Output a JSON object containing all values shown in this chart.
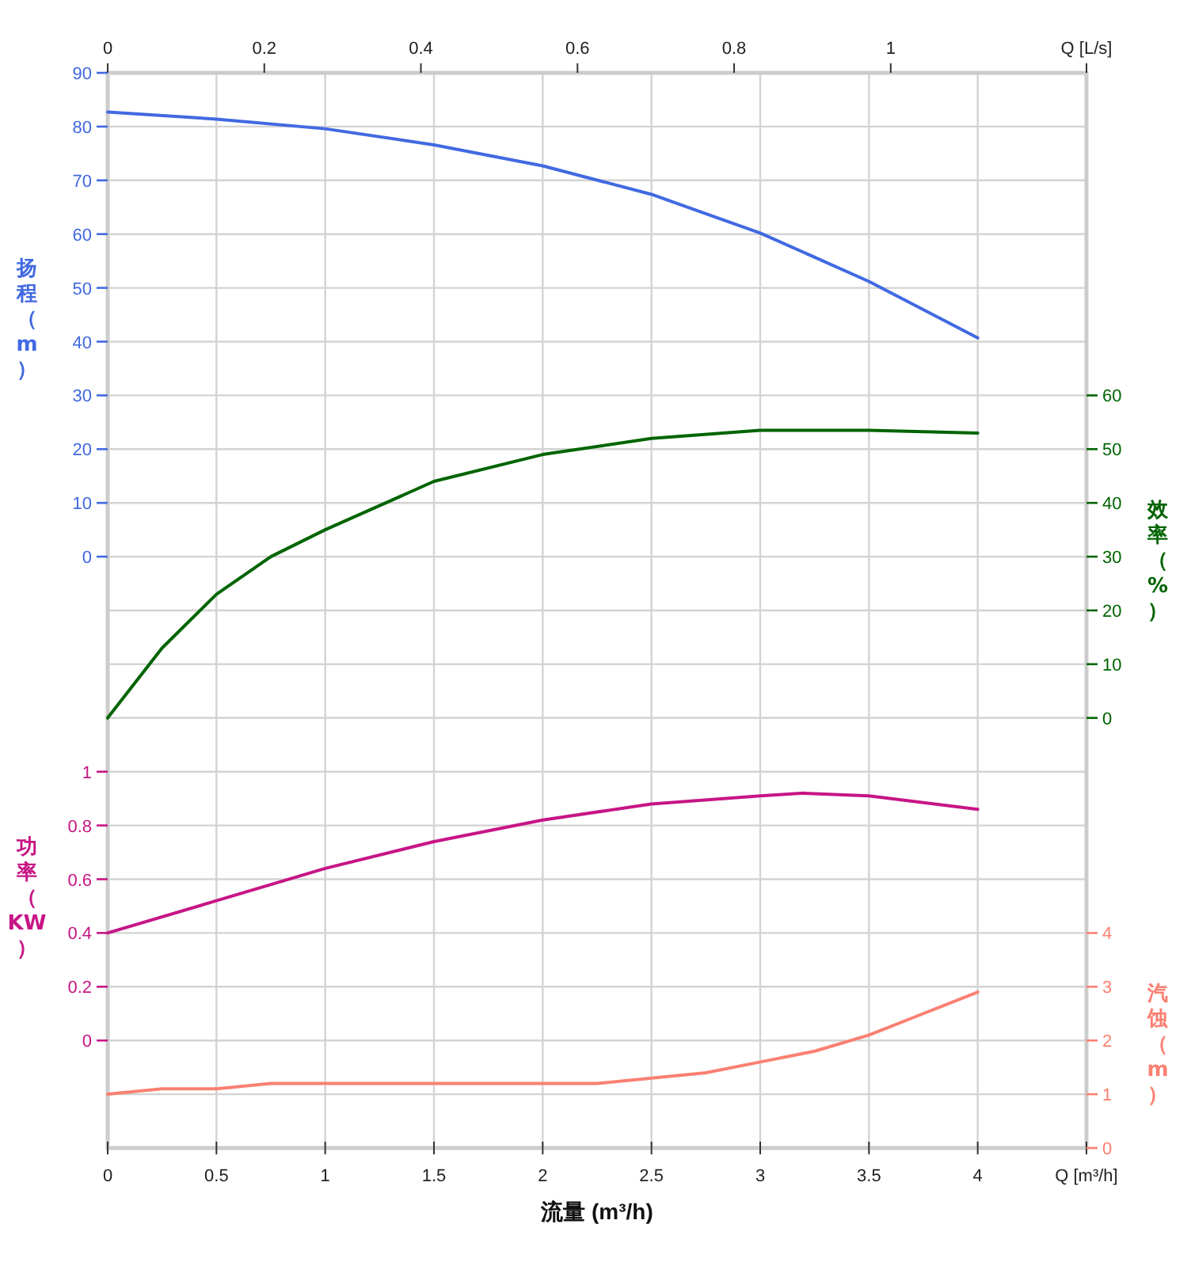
{
  "chart_data": [
    {
      "type": "line",
      "xlabel": "流量 (m³/h)",
      "x2label": "Q [L/s]",
      "ylabel": "扬程（m）",
      "y2label": "效率（%）",
      "xlim": [
        0,
        4.5
      ],
      "xticks": [
        0,
        0.5,
        1,
        1.5,
        2,
        2.5,
        3,
        3.5,
        4,
        {
          "value": 4.5,
          "label": "Q [m³/h]"
        }
      ],
      "x2lim": [
        0,
        1.25
      ],
      "x2ticks": [
        0,
        0.2,
        0.4,
        0.6,
        0.8,
        1,
        {
          "value": 1.25,
          "label": null
        }
      ],
      "ylim": [
        -110,
        90
      ],
      "yticks": [
        {
          "value": -100,
          "label": null
        },
        {
          "value": -90,
          "label": null
        },
        {
          "value": -80,
          "label": null
        },
        {
          "value": -70,
          "label": null
        },
        {
          "value": -60,
          "label": null
        },
        {
          "value": -50,
          "label": null
        },
        {
          "value": -40,
          "label": null
        },
        {
          "value": -30,
          "label": null
        },
        {
          "value": -20,
          "label": null
        },
        {
          "value": -10,
          "label": null
        },
        0,
        10,
        20,
        30,
        40,
        50,
        60,
        70,
        80,
        90
      ],
      "y2lim": [
        -80,
        120
      ],
      "y2ticks": [
        0,
        10,
        20,
        30,
        40,
        50,
        60
      ],
      "grid": true,
      "line_style": "solid",
      "series": [
        {
          "color": "#4169e1",
          "x": [
            0,
            0.5,
            1,
            1.5,
            2,
            2.5,
            3,
            3.5,
            4
          ],
          "values": [
            82.7,
            81.4,
            79.6,
            76.6,
            72.7,
            67.4,
            60.2,
            51.2,
            40.7
          ]
        },
        {
          "axis": "y2",
          "color": "#006400",
          "x": [
            0,
            0.25,
            0.5,
            0.75,
            1,
            1.5,
            2,
            2.5,
            3,
            3.5,
            4
          ],
          "values": [
            0,
            13,
            23,
            30,
            35,
            44,
            49,
            52,
            53.5,
            53.5,
            53
          ]
        }
      ]
    },
    {
      "type": "line",
      "ylabel": "功率（KW）",
      "y2label": "汽蚀（m）",
      "xlim": [
        0,
        4.5
      ],
      "ylim": [
        -0.4,
        3.6
      ],
      "yticks": [
        0,
        0.2,
        0.4,
        0.6,
        0.8,
        1
      ],
      "y2lim": [
        0,
        20
      ],
      "y2ticks": [
        0,
        1,
        2,
        3,
        4
      ],
      "tick_labels": "y",
      "line_style": "solid",
      "series": [
        {
          "color": "#c71585",
          "x": [
            0,
            0.5,
            1,
            1.5,
            2,
            2.5,
            3,
            3.2,
            3.5,
            4
          ],
          "values": [
            0.4,
            0.52,
            0.64,
            0.74,
            0.82,
            0.88,
            0.91,
            0.92,
            0.91,
            0.86
          ]
        },
        {
          "axis": "y2",
          "color": "#fa8072",
          "x": [
            0,
            0.25,
            0.5,
            0.75,
            1,
            1.5,
            1.75,
            2,
            2.25,
            2.5,
            2.75,
            3,
            3.25,
            3.5,
            3.75,
            4
          ],
          "values": [
            1.0,
            1.1,
            1.1,
            1.2,
            1.2,
            1.2,
            1.2,
            1.2,
            1.2,
            1.3,
            1.4,
            1.6,
            1.8,
            2.1,
            2.5,
            2.9
          ]
        }
      ]
    }
  ]
}
